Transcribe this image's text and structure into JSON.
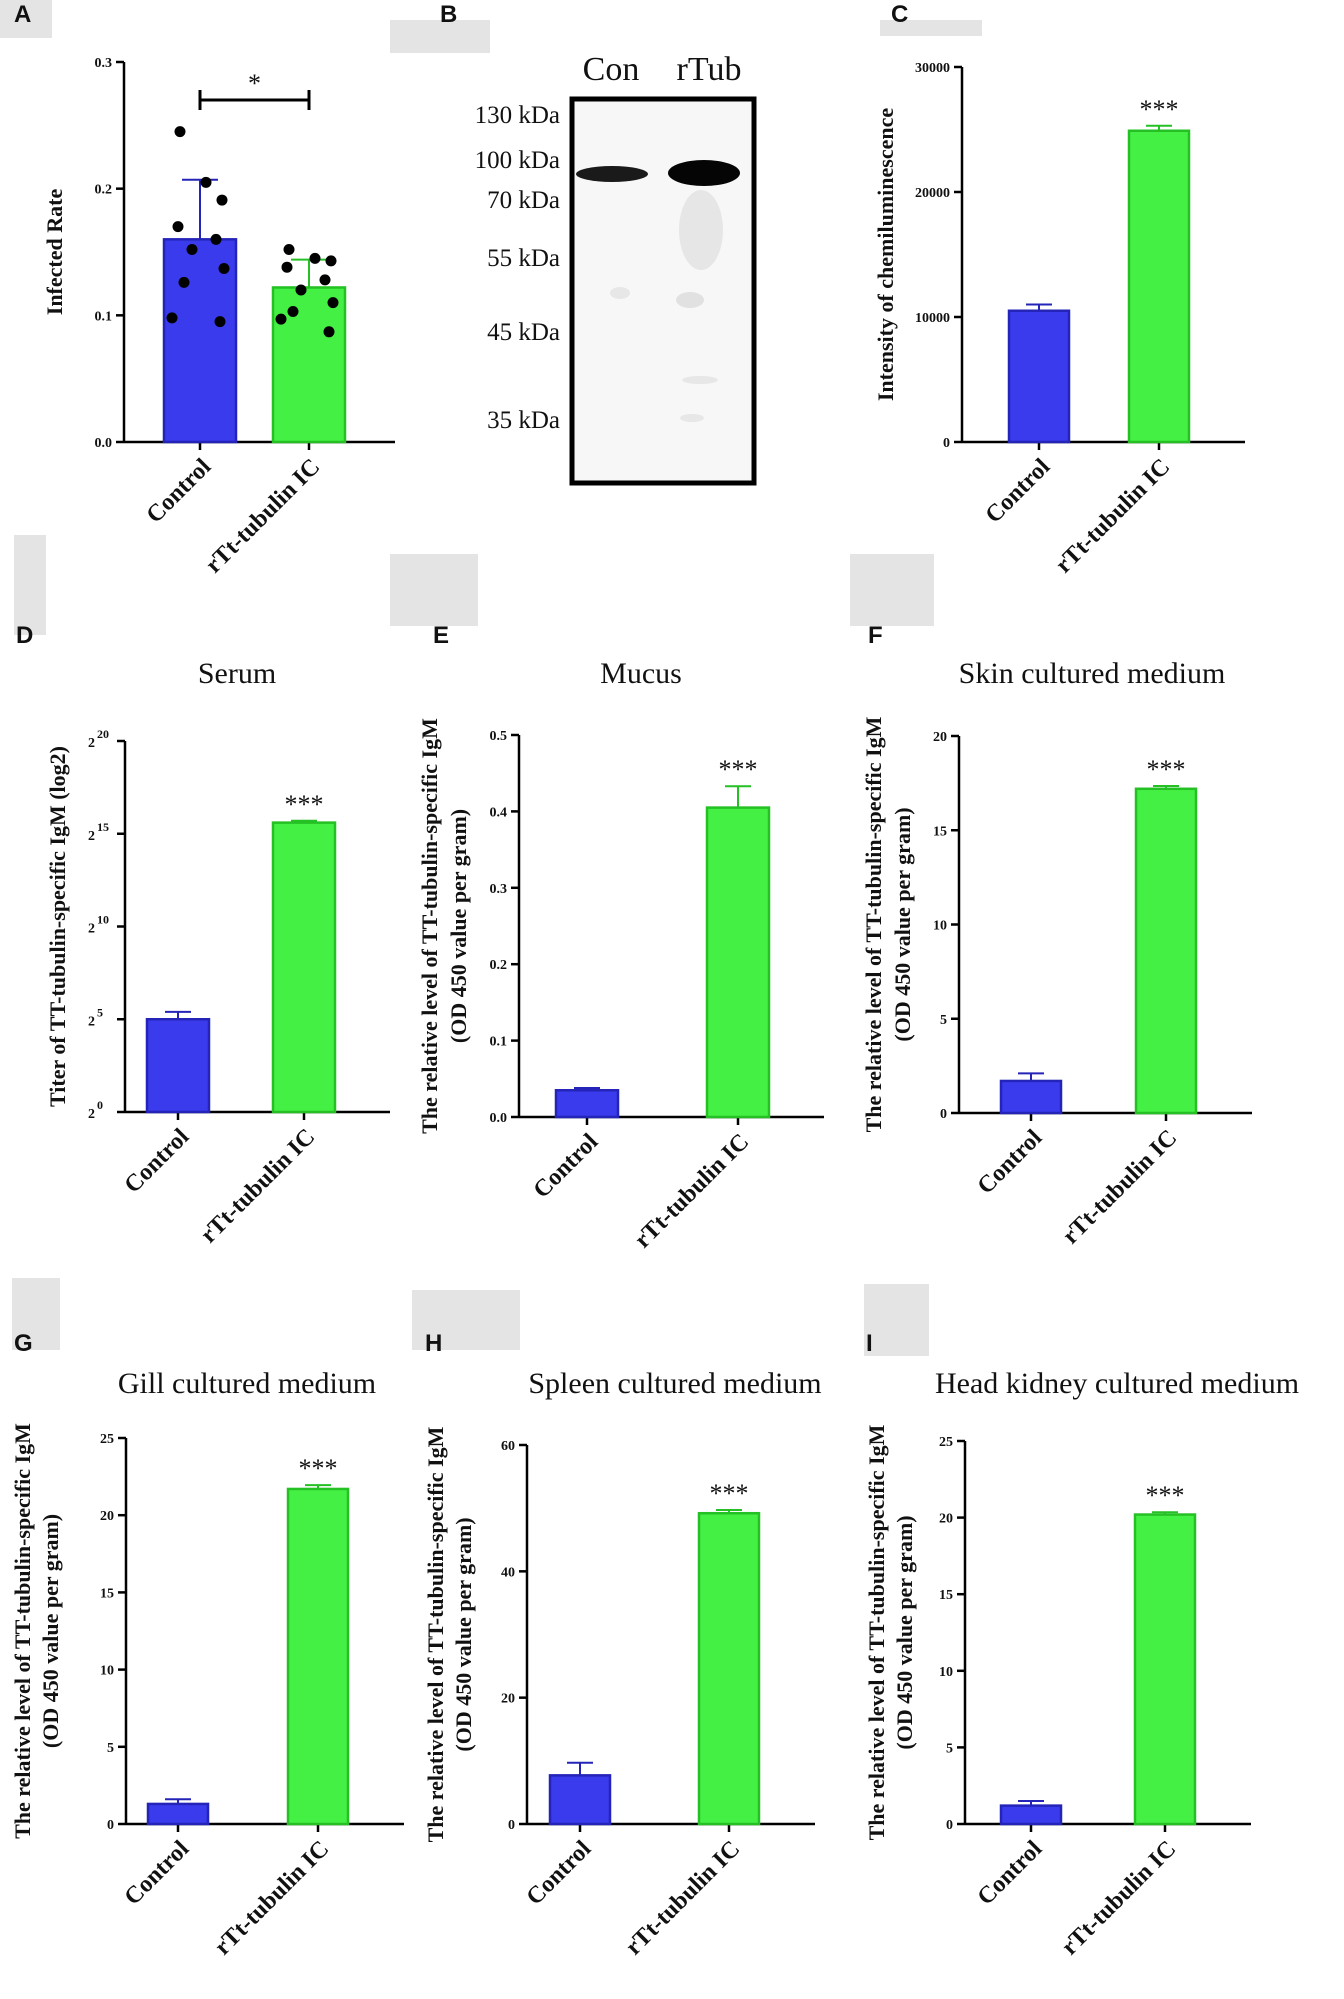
{
  "colors": {
    "control": "#3b3bee",
    "treated": "#44f044",
    "control_edge": "#2424b8",
    "treated_edge": "#24c024",
    "placeholder": "#e4e4e4"
  },
  "chart_data": [
    {
      "id": "A",
      "letter": "A",
      "type": "bar",
      "title": "",
      "ylabel": "Infected Rate",
      "ylabel2": "",
      "ylim": [
        0,
        0.3
      ],
      "yticks": [
        "0.0",
        "0.1",
        "0.2",
        "0.3"
      ],
      "categories": [
        "Control",
        "rTt-tubulin IC"
      ],
      "values": [
        0.16,
        0.122
      ],
      "errors": [
        0.047,
        0.022
      ],
      "points": [
        [
          0.245,
          0.205,
          0.191,
          0.17,
          0.16,
          0.152,
          0.137,
          0.126,
          0.098,
          0.095
        ],
        [
          0.152,
          0.145,
          0.143,
          0.138,
          0.128,
          0.12,
          0.11,
          0.103,
          0.097,
          0.087
        ]
      ],
      "significance": "*",
      "significance_type": "bracket"
    },
    {
      "id": "C",
      "letter": "C",
      "type": "bar",
      "title": "",
      "ylabel": "Intensity of chemiluminescence",
      "ylabel2": "",
      "ylim": [
        0,
        30000
      ],
      "yticks": [
        "0",
        "10000",
        "20000",
        "30000"
      ],
      "categories": [
        "Control",
        "rTt-tubulin IC"
      ],
      "values": [
        10500,
        24900
      ],
      "errors": [
        500,
        400
      ],
      "significance": "***",
      "significance_type": "stars"
    },
    {
      "id": "D",
      "letter": "D",
      "type": "bar",
      "title": "Serum",
      "ylabel": "Titer of TT-tubulin-specific IgM (log2)",
      "ylabel2": "",
      "ylim": [
        0,
        20
      ],
      "ytick_base": "2",
      "ytick_exponents": [
        "0",
        "5",
        "10",
        "15",
        "20"
      ],
      "categories": [
        "Control",
        "rTt-tubulin IC"
      ],
      "values": [
        5.0,
        15.6
      ],
      "errors": [
        0.4,
        0.1
      ],
      "significance": "***",
      "significance_type": "stars"
    },
    {
      "id": "E",
      "letter": "E",
      "type": "bar",
      "title": "Mucus",
      "ylabel": "The relative level of TT-tubulin-specific IgM",
      "ylabel2": "(OD 450 value per gram)",
      "ylim": [
        0,
        0.5
      ],
      "yticks": [
        "0.0",
        "0.1",
        "0.2",
        "0.3",
        "0.4",
        "0.5"
      ],
      "categories": [
        "Control",
        "rTt-tubulin IC"
      ],
      "values": [
        0.035,
        0.405
      ],
      "errors": [
        0.003,
        0.028
      ],
      "significance": "***",
      "significance_type": "stars"
    },
    {
      "id": "F",
      "letter": "F",
      "type": "bar",
      "title": "Skin cultured medium",
      "ylabel": "The relative level of TT-tubulin-specific IgM",
      "ylabel2": "(OD 450 value per gram)",
      "ylim": [
        0,
        20
      ],
      "yticks": [
        "0",
        "5",
        "10",
        "15",
        "20"
      ],
      "categories": [
        "Control",
        "rTt-tubulin IC"
      ],
      "values": [
        1.7,
        17.2
      ],
      "errors": [
        0.4,
        0.15
      ],
      "significance": "***",
      "significance_type": "stars"
    },
    {
      "id": "G",
      "letter": "G",
      "type": "bar",
      "title": "Gill cultured medium",
      "ylabel": "The relative level of TT-tubulin-specific IgM",
      "ylabel2": "(OD 450 value per gram)",
      "ylim": [
        0,
        25
      ],
      "yticks": [
        "0",
        "5",
        "10",
        "15",
        "20",
        "25"
      ],
      "categories": [
        "Control",
        "rTt-tubulin IC"
      ],
      "values": [
        1.3,
        21.7
      ],
      "errors": [
        0.3,
        0.25
      ],
      "significance": "***",
      "significance_type": "stars"
    },
    {
      "id": "H",
      "letter": "H",
      "type": "bar",
      "title": "Spleen cultured medium",
      "ylabel": "The relative level of TT-tubulin-specific IgM",
      "ylabel2": "(OD 450 value per gram)",
      "ylim": [
        0,
        60
      ],
      "yticks": [
        "0",
        "20",
        "40",
        "60"
      ],
      "categories": [
        "Control",
        "rTt-tubulin IC"
      ],
      "values": [
        7.7,
        49.2
      ],
      "errors": [
        2.0,
        0.5
      ],
      "significance": "***",
      "significance_type": "stars"
    },
    {
      "id": "I",
      "letter": "I",
      "type": "bar",
      "title": "Head kidney cultured medium",
      "ylabel": "The relative level of TT-tubulin-specific IgM",
      "ylabel2": "(OD 450 value per gram)",
      "ylim": [
        0,
        25
      ],
      "yticks": [
        "0",
        "5",
        "10",
        "15",
        "20",
        "25"
      ],
      "categories": [
        "Control",
        "rTt-tubulin IC"
      ],
      "values": [
        1.2,
        20.2
      ],
      "errors": [
        0.3,
        0.15
      ],
      "significance": "***",
      "significance_type": "stars"
    }
  ],
  "blot": {
    "letter": "B",
    "lanes": [
      "Con",
      "rTub"
    ],
    "markers": [
      "130 kDa",
      "100 kDa",
      "70 kDa",
      "55 kDa",
      "45 kDa",
      "35 kDa"
    ]
  }
}
